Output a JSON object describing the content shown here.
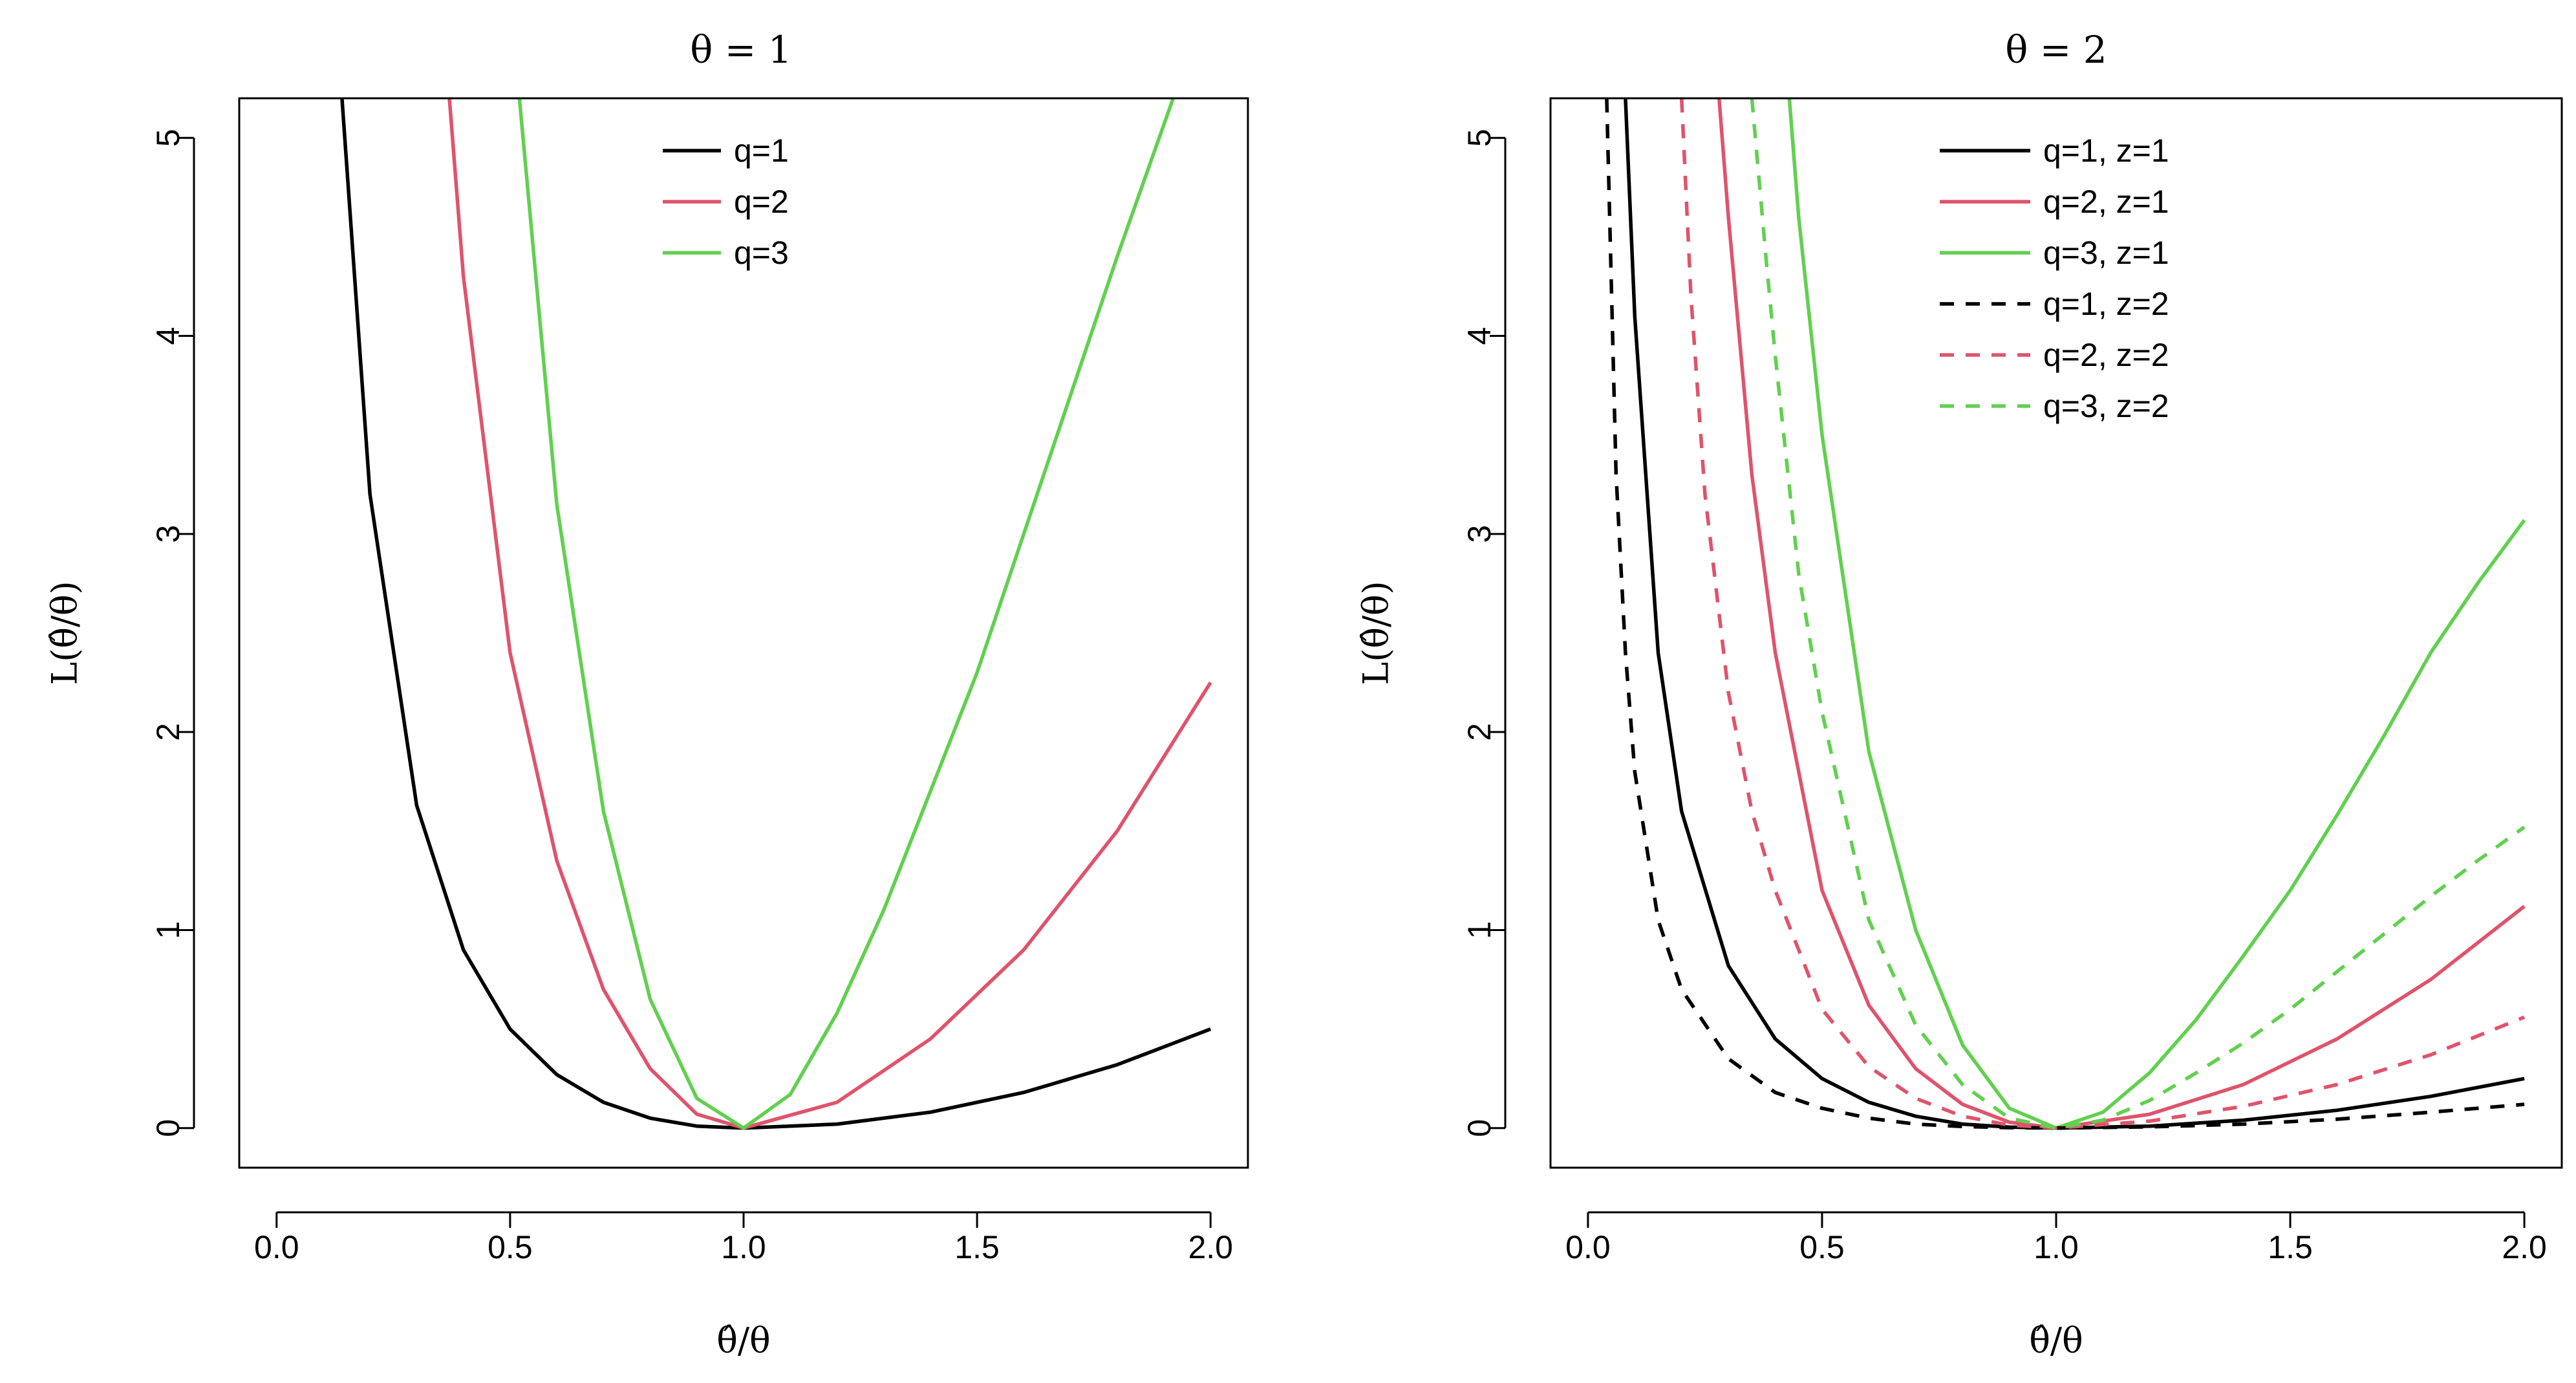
{
  "chart_data": [
    {
      "type": "line",
      "title": "θ = 1",
      "xlabel": "θ̂/θ",
      "ylabel": "L(θ̂/θ)",
      "xlim": [
        -0.08,
        2.08
      ],
      "ylim": [
        -0.2,
        5.2
      ],
      "xticks": [
        0,
        0.5,
        1,
        1.5,
        2
      ],
      "xtick_labels": [
        "0.0",
        "0.5",
        "1.0",
        "1.5",
        "2.0"
      ],
      "yticks": [
        0,
        1,
        2,
        3,
        4,
        5
      ],
      "ytick_labels": [
        "0",
        "1",
        "2",
        "3",
        "4",
        "5"
      ],
      "legend_position": "top-center",
      "series": [
        {
          "name": "q=1",
          "color": "#000000",
          "dash": "solid",
          "x": [
            0.14,
            0.2,
            0.3,
            0.4,
            0.5,
            0.6,
            0.7,
            0.8,
            0.9,
            1.0,
            1.2,
            1.4,
            1.6,
            1.8,
            2.0
          ],
          "y": [
            5.2,
            3.2,
            1.63,
            0.9,
            0.5,
            0.27,
            0.13,
            0.05,
            0.01,
            0.0,
            0.02,
            0.08,
            0.18,
            0.32,
            0.5
          ]
        },
        {
          "name": "q=2",
          "color": "#DF536B",
          "dash": "solid",
          "x": [
            0.37,
            0.4,
            0.5,
            0.6,
            0.7,
            0.8,
            0.9,
            1.0,
            1.2,
            1.4,
            1.6,
            1.8,
            2.0
          ],
          "y": [
            5.2,
            4.3,
            2.4,
            1.35,
            0.7,
            0.3,
            0.07,
            0.0,
            0.13,
            0.45,
            0.9,
            1.5,
            2.25
          ]
        },
        {
          "name": "q=3",
          "color": "#61D04F",
          "dash": "solid",
          "x": [
            0.52,
            0.6,
            0.7,
            0.8,
            0.9,
            1.0,
            1.1,
            1.2,
            1.3,
            1.4,
            1.5,
            1.6,
            1.7,
            1.8,
            1.92
          ],
          "y": [
            5.2,
            3.15,
            1.6,
            0.65,
            0.15,
            0.0,
            0.17,
            0.58,
            1.1,
            1.7,
            2.3,
            3.0,
            3.7,
            4.4,
            5.2
          ]
        }
      ]
    },
    {
      "type": "line",
      "title": "θ = 2",
      "xlabel": "θ̂/θ",
      "ylabel": "L(θ̂/θ)",
      "xlim": [
        -0.08,
        2.08
      ],
      "ylim": [
        -0.2,
        5.2
      ],
      "xticks": [
        0,
        0.5,
        1,
        1.5,
        2
      ],
      "xtick_labels": [
        "0.0",
        "0.5",
        "1.0",
        "1.5",
        "2.0"
      ],
      "yticks": [
        0,
        1,
        2,
        3,
        4,
        5
      ],
      "ytick_labels": [
        "0",
        "1",
        "2",
        "3",
        "4",
        "5"
      ],
      "legend_position": "top-right",
      "series": [
        {
          "name": "q=1, z=1",
          "color": "#000000",
          "dash": "solid",
          "x": [
            0.08,
            0.1,
            0.15,
            0.2,
            0.3,
            0.4,
            0.5,
            0.6,
            0.7,
            0.8,
            0.9,
            1.0,
            1.2,
            1.4,
            1.6,
            1.8,
            2.0
          ],
          "y": [
            5.2,
            4.1,
            2.4,
            1.6,
            0.82,
            0.45,
            0.25,
            0.13,
            0.06,
            0.02,
            0.005,
            0.0,
            0.01,
            0.04,
            0.09,
            0.16,
            0.25
          ]
        },
        {
          "name": "q=2, z=1",
          "color": "#DF536B",
          "dash": "solid",
          "x": [
            0.28,
            0.3,
            0.35,
            0.4,
            0.5,
            0.6,
            0.7,
            0.8,
            0.9,
            1.0,
            1.2,
            1.4,
            1.6,
            1.8,
            2.0
          ],
          "y": [
            5.2,
            4.6,
            3.3,
            2.4,
            1.2,
            0.62,
            0.3,
            0.12,
            0.03,
            0.0,
            0.07,
            0.22,
            0.45,
            0.75,
            1.12
          ]
        },
        {
          "name": "q=3, z=1",
          "color": "#61D04F",
          "dash": "solid",
          "x": [
            0.43,
            0.45,
            0.5,
            0.6,
            0.7,
            0.8,
            0.9,
            1.0,
            1.1,
            1.2,
            1.3,
            1.4,
            1.5,
            1.6,
            1.7,
            1.8,
            1.9,
            2.0
          ],
          "y": [
            5.2,
            4.6,
            3.5,
            1.9,
            1.0,
            0.42,
            0.1,
            0.0,
            0.08,
            0.28,
            0.55,
            0.87,
            1.2,
            1.58,
            1.98,
            2.4,
            2.75,
            3.07
          ]
        },
        {
          "name": "q=1, z=2",
          "color": "#000000",
          "dash": "dashed",
          "x": [
            0.04,
            0.06,
            0.08,
            0.1,
            0.15,
            0.2,
            0.3,
            0.4,
            0.5,
            0.6,
            0.7,
            0.8,
            0.9,
            1.0,
            1.2,
            1.4,
            1.6,
            1.8,
            2.0
          ],
          "y": [
            5.2,
            3.3,
            2.4,
            1.8,
            1.05,
            0.7,
            0.35,
            0.18,
            0.1,
            0.05,
            0.02,
            0.008,
            0.002,
            0.0,
            0.006,
            0.02,
            0.045,
            0.08,
            0.12
          ]
        },
        {
          "name": "q=2, z=2",
          "color": "#DF536B",
          "dash": "dashed",
          "x": [
            0.2,
            0.22,
            0.25,
            0.3,
            0.35,
            0.4,
            0.5,
            0.6,
            0.7,
            0.8,
            0.9,
            1.0,
            1.2,
            1.4,
            1.6,
            1.8,
            2.0
          ],
          "y": [
            5.2,
            4.2,
            3.2,
            2.2,
            1.6,
            1.2,
            0.6,
            0.31,
            0.15,
            0.06,
            0.015,
            0.0,
            0.035,
            0.11,
            0.22,
            0.37,
            0.56
          ]
        },
        {
          "name": "q=3, z=2",
          "color": "#61D04F",
          "dash": "dashed",
          "x": [
            0.35,
            0.38,
            0.4,
            0.45,
            0.5,
            0.6,
            0.7,
            0.8,
            0.9,
            1.0,
            1.1,
            1.2,
            1.3,
            1.4,
            1.5,
            1.6,
            1.7,
            1.8,
            1.9,
            2.0
          ],
          "y": [
            5.2,
            4.4,
            3.9,
            2.8,
            2.1,
            1.05,
            0.52,
            0.22,
            0.05,
            0.0,
            0.04,
            0.14,
            0.28,
            0.43,
            0.6,
            0.79,
            0.98,
            1.17,
            1.35,
            1.52
          ]
        }
      ]
    }
  ]
}
